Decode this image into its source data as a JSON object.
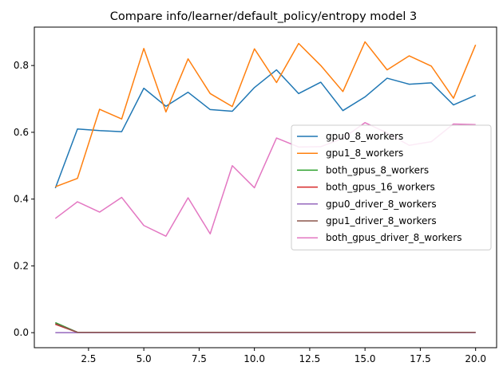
{
  "chart_data": {
    "type": "line",
    "title": "Compare info/learner/default_policy/entropy model 3",
    "xlabel": "",
    "ylabel": "",
    "xlim": [
      0.05,
      20.95
    ],
    "ylim": [
      -0.045,
      0.915
    ],
    "x_ticks": [
      2.5,
      5.0,
      7.5,
      10.0,
      12.5,
      15.0,
      17.5,
      20.0
    ],
    "x_tick_labels": [
      "2.5",
      "5.0",
      "7.5",
      "10.0",
      "12.5",
      "15.0",
      "17.5",
      "20.0"
    ],
    "y_ticks": [
      0.0,
      0.2,
      0.4,
      0.6,
      0.8
    ],
    "y_tick_labels": [
      "0.0",
      "0.2",
      "0.4",
      "0.6",
      "0.8"
    ],
    "grid": false,
    "legend_position": "center-right",
    "x": [
      1,
      2,
      3,
      4,
      5,
      6,
      7,
      8,
      9,
      10,
      11,
      12,
      13,
      14,
      15,
      16,
      17,
      18,
      19,
      20
    ],
    "series": [
      {
        "name": "gpu0_8_workers",
        "color": "#1f77b4",
        "values": [
          0.433,
          0.61,
          0.605,
          0.602,
          0.732,
          0.678,
          0.72,
          0.668,
          0.663,
          0.734,
          0.787,
          0.716,
          0.75,
          0.665,
          0.706,
          0.762,
          0.744,
          0.748,
          0.682,
          0.711
        ]
      },
      {
        "name": "gpu1_8_workers",
        "color": "#ff7f0e",
        "values": [
          0.437,
          0.462,
          0.669,
          0.64,
          0.851,
          0.661,
          0.82,
          0.716,
          0.677,
          0.85,
          0.749,
          0.866,
          0.8,
          0.722,
          0.871,
          0.787,
          0.829,
          0.798,
          0.702,
          0.862
        ]
      },
      {
        "name": "both_gpus_8_workers",
        "color": "#2ca02c",
        "values": [
          0.03,
          0.001,
          0.001,
          0.001,
          0.001,
          0.001,
          0.001,
          0.001,
          0.001,
          0.001,
          0.001,
          0.001,
          0.001,
          0.001,
          0.001,
          0.001,
          0.001,
          0.001,
          0.001,
          0.001
        ]
      },
      {
        "name": "both_gpus_16_workers",
        "color": "#d62728",
        "values": [
          0.025,
          0.001,
          0.001,
          0.001,
          0.001,
          0.001,
          0.001,
          0.001,
          0.001,
          0.001,
          0.001,
          0.001,
          0.001,
          0.001,
          0.001,
          0.001,
          0.001,
          0.001,
          0.001,
          0.001
        ]
      },
      {
        "name": "gpu0_driver_8_workers",
        "color": "#9467bd",
        "values": [
          0.0,
          0.0,
          0.0,
          0.0,
          0.0,
          0.0,
          0.0,
          0.0,
          0.0,
          0.0,
          0.0,
          0.0,
          0.0,
          0.0,
          0.0,
          0.0,
          0.0,
          0.0,
          0.0,
          0.0
        ]
      },
      {
        "name": "gpu1_driver_8_workers",
        "color": "#8c564b",
        "values": [
          0.027,
          0.001,
          0.001,
          0.001,
          0.001,
          0.001,
          0.001,
          0.001,
          0.001,
          0.001,
          0.001,
          0.001,
          0.001,
          0.001,
          0.001,
          0.001,
          0.001,
          0.001,
          0.001,
          0.001
        ]
      },
      {
        "name": "both_gpus_driver_8_workers",
        "color": "#e377c2",
        "values": [
          0.342,
          0.392,
          0.361,
          0.405,
          0.321,
          0.289,
          0.404,
          0.296,
          0.5,
          0.434,
          0.583,
          0.556,
          0.557,
          0.582,
          0.629,
          0.598,
          0.561,
          0.572,
          0.625,
          0.623
        ]
      }
    ]
  }
}
